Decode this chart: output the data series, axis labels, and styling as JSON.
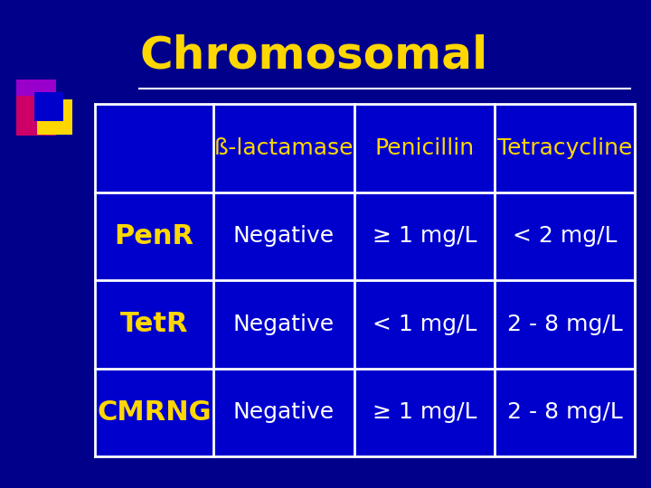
{
  "title": "Chromosomal",
  "title_color": "#FFD700",
  "title_fontsize": 36,
  "bg_color": "#00008B",
  "table_border_color": "#FFFFFF",
  "header_row": [
    "ß-lactamase",
    "Penicillin",
    "Tetracycline"
  ],
  "header_color": "#FFD700",
  "header_fontsize": 18,
  "row_labels": [
    "PenR",
    "TetR",
    "CMRNG"
  ],
  "row_label_color": "#FFD700",
  "row_label_fontsize": 22,
  "cell_data": [
    [
      "Negative",
      "≥ 1 mg/L",
      "< 2 mg/L"
    ],
    [
      "Negative",
      "< 1 mg/L",
      "2 - 8 mg/L"
    ],
    [
      "Negative",
      "≥ 1 mg/L",
      "2 - 8 mg/L"
    ]
  ],
  "cell_color": "#FFFFFF",
  "cell_fontsize": 18,
  "cell_bg_color": "#0000CD",
  "line_color": "#FFFFFF",
  "line_width": 2.0,
  "horizontal_line_color": "#FFD700",
  "logo_colors": {
    "purple": "#9900CC",
    "pink": "#CC0066",
    "yellow": "#FFD700",
    "blue": "#0000CD"
  }
}
